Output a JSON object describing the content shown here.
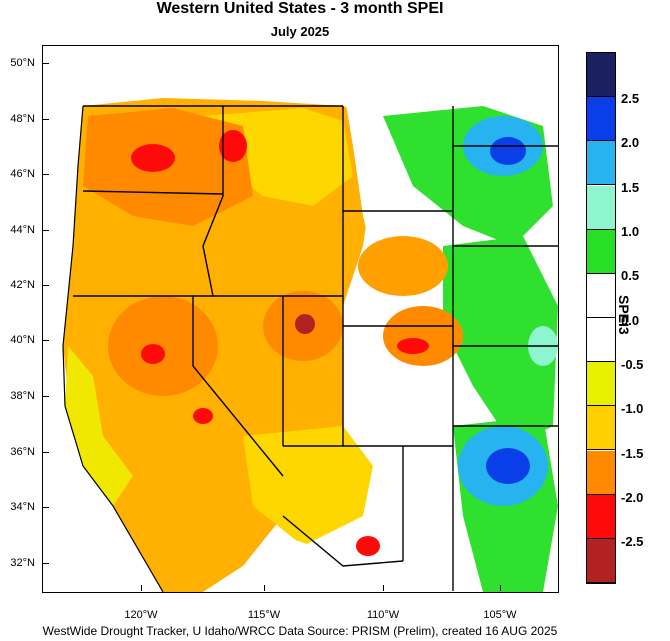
{
  "title": "Western United States - 3 month SPEI",
  "subtitle": "July 2025",
  "footer": "WestWide Drought Tracker, U Idaho/WRCC Data Source: PRISM (Prelim), created 16 AUG 2025",
  "colorbar": {
    "title": "SPEI3",
    "labels": [
      "2.5",
      "2.0",
      "1.5",
      "1.0",
      "0.5",
      "0.0",
      "-0.5",
      "-1.0",
      "-1.5",
      "-2.0",
      "-2.5"
    ],
    "colors": [
      "#1a2060",
      "#0a3ee8",
      "#26b3f0",
      "#8ef6cf",
      "#25e025",
      "#ffffff",
      "#ffffff",
      "#e7f000",
      "#ffcf00",
      "#ff8a00",
      "#ff0a0a",
      "#b22222"
    ]
  },
  "latitude_labels": [
    "50°N",
    "48°N",
    "46°N",
    "44°N",
    "42°N",
    "40°N",
    "38°N",
    "36°N",
    "34°N",
    "32°N"
  ],
  "longitude_labels": [
    "120°W",
    "115°W",
    "110°W",
    "105°W"
  ],
  "colors": {
    "ocean": "#ffffff",
    "border": "#000000"
  }
}
